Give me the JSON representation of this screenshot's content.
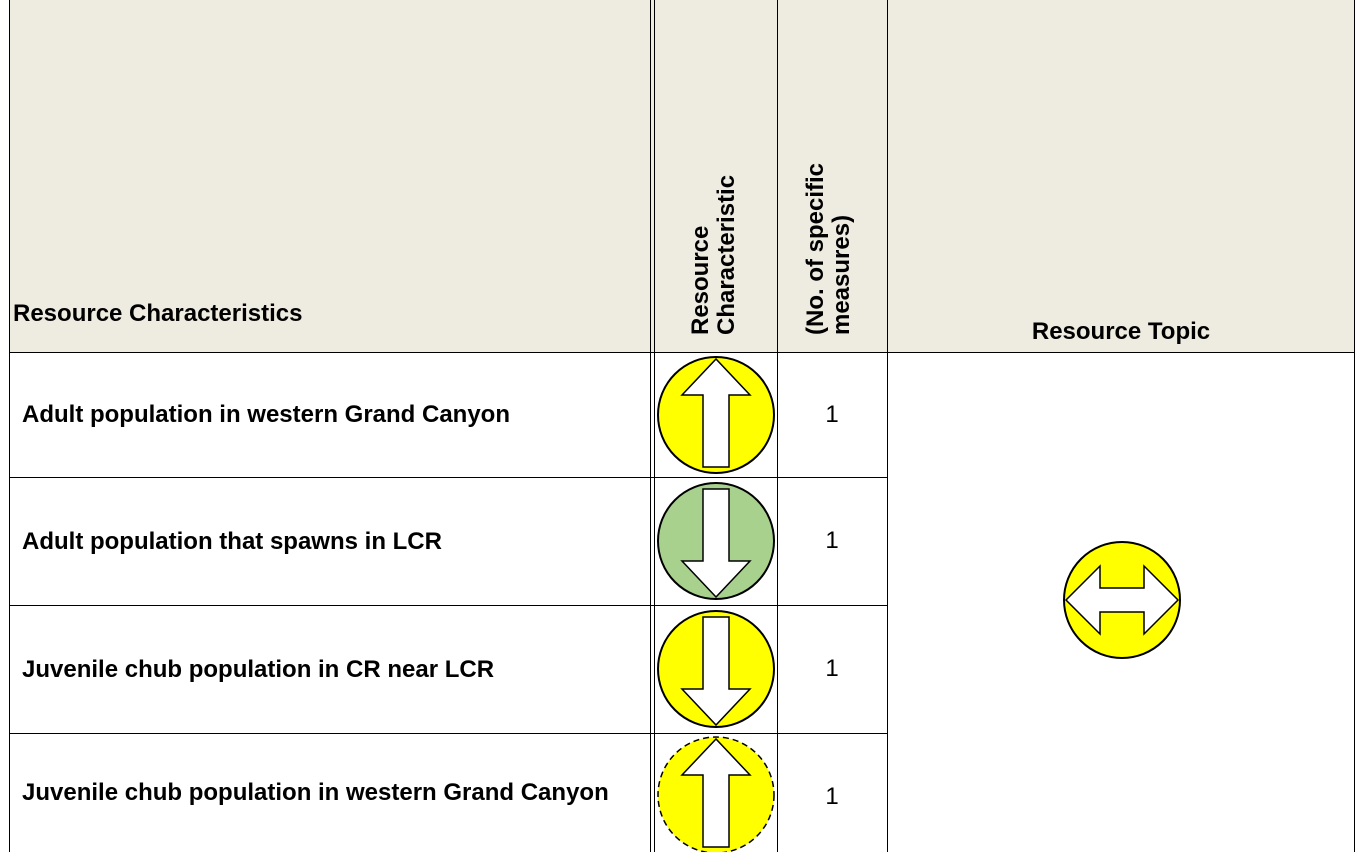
{
  "table": {
    "header": [
      "Resource Characteristics",
      "Resource Characteristic",
      "(No. of specific measures)",
      "Resource Topic"
    ],
    "rows": [
      [
        "Adult population in western Grand Canyon",
        1
      ],
      [
        "Adult population that spawns in LCR",
        1
      ],
      [
        "Juvenile chub population in CR near LCR",
        1
      ],
      [
        "Juvenile chub population in western Grand Canyon",
        1
      ]
    ]
  }
}
